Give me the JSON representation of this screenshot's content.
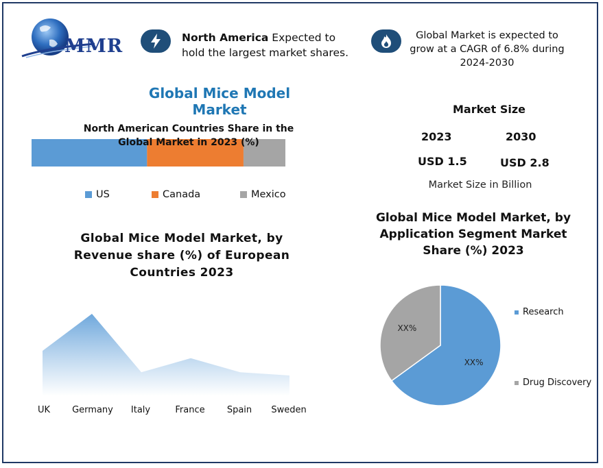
{
  "logo": {
    "text": "MMR"
  },
  "headline_na": {
    "bold": "North America",
    "rest": " Expected to hold the largest market shares."
  },
  "headline_cagr": {
    "text": "Global Market is expected to grow at a CAGR of 6.8% during 2024-2030"
  },
  "main_title": "Global Mice Model Market",
  "market_size": {
    "title": "Market Size",
    "year_a": "2023",
    "year_b": "2030",
    "value_a": "USD 1.5",
    "value_b": "USD 2.8",
    "unit": "Market Size in Billion"
  },
  "colors": {
    "us": "#5b9bd5",
    "canada": "#ed7d31",
    "mexico": "#a5a5a5",
    "area": "#6fa8dc",
    "icon_bg": "#1f4e79",
    "title_blue": "#1f77b4"
  },
  "icons": [
    "globe-logo-icon",
    "lightning-icon",
    "flame-icon"
  ],
  "chart_data": [
    {
      "type": "bar",
      "title": "North American Countries Share in the Global Market in 2023 (%)",
      "orientation": "horizontal-stacked",
      "categories": [
        "US",
        "Canada",
        "Mexico"
      ],
      "values": [
        45.5,
        38,
        16.5
      ],
      "legend_position": "bottom"
    },
    {
      "type": "area",
      "title": "Global Mice Model Market, by Revenue share (%) of European Countries 2023",
      "categories": [
        "UK",
        "Germany",
        "Italy",
        "France",
        "Spain",
        "Sweden"
      ],
      "values": [
        55,
        100,
        29,
        46,
        29,
        25
      ],
      "grid": false,
      "ylabel": ""
    },
    {
      "type": "pie",
      "title": "Global Mice Model Market, by Application Segment Market Share (%) 2023",
      "categories": [
        "Research",
        "Drug Discovery"
      ],
      "values": [
        65,
        35
      ],
      "labels": [
        "XX%",
        "XX%"
      ],
      "legend_position": "right"
    }
  ]
}
